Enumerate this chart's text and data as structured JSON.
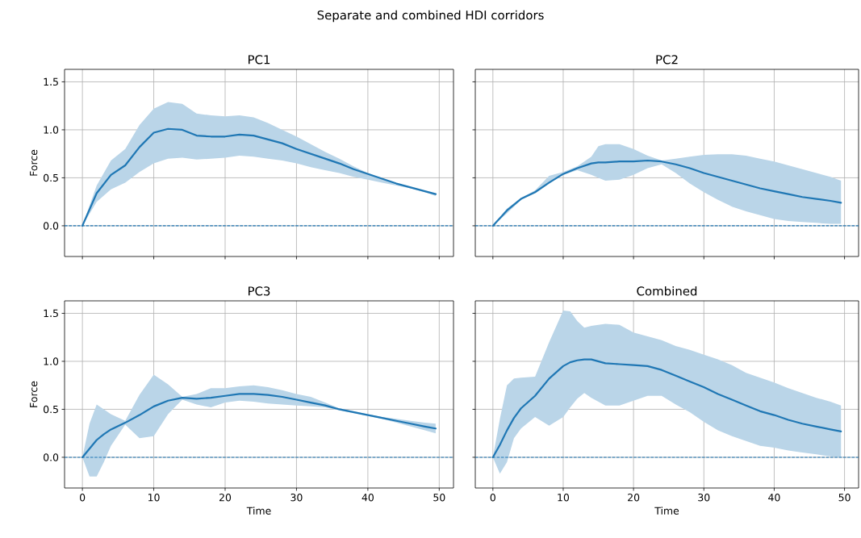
{
  "chart_data": [
    {
      "type": "other",
      "title": "Separate and combined HDI corridors"
    },
    {
      "type": "line",
      "title": "PC1",
      "ylabel": "Force",
      "xlim": [
        -2.5,
        52
      ],
      "ylim": [
        -0.32,
        1.63
      ],
      "xticks": [
        0,
        10,
        20,
        30,
        40,
        50
      ],
      "yticks": [
        {
          "value": 0,
          "label": "0.0"
        },
        {
          "value": 0.5,
          "label": "0.5"
        },
        {
          "value": 1,
          "label": "1.0"
        },
        {
          "value": 1.5,
          "label": "1.5"
        }
      ],
      "tick_labels": "y",
      "grid": true,
      "ref_lines": [
        {
          "axis": "y",
          "value": 0,
          "color": "#1f77b4",
          "line_style": "dashed"
        }
      ],
      "series": [
        {
          "color": "#1f77b4",
          "x": [
            0,
            2,
            4,
            6,
            8,
            10,
            12,
            14,
            16,
            18,
            20,
            22,
            24,
            26,
            28,
            30,
            32,
            34,
            36,
            38,
            40,
            42,
            44,
            46,
            48,
            49.5
          ],
          "values": [
            0,
            0.34,
            0.53,
            0.63,
            0.82,
            0.97,
            1.01,
            1.0,
            0.94,
            0.93,
            0.93,
            0.95,
            0.94,
            0.9,
            0.86,
            0.8,
            0.75,
            0.7,
            0.65,
            0.59,
            0.54,
            0.49,
            0.44,
            0.4,
            0.36,
            0.33
          ],
          "lower": [
            0,
            0.25,
            0.38,
            0.45,
            0.56,
            0.65,
            0.7,
            0.71,
            0.69,
            0.7,
            0.71,
            0.73,
            0.72,
            0.7,
            0.68,
            0.65,
            0.61,
            0.58,
            0.55,
            0.51,
            0.48,
            0.45,
            0.42,
            0.39,
            0.35,
            0.31
          ],
          "upper": [
            0,
            0.42,
            0.68,
            0.8,
            1.05,
            1.22,
            1.29,
            1.27,
            1.17,
            1.15,
            1.14,
            1.15,
            1.13,
            1.07,
            1.0,
            0.93,
            0.85,
            0.77,
            0.7,
            0.62,
            0.55,
            0.49,
            0.44,
            0.4,
            0.36,
            0.33
          ]
        }
      ]
    },
    {
      "type": "line",
      "title": "PC2",
      "xlim": [
        -2.5,
        52
      ],
      "ylim": [
        -0.32,
        1.63
      ],
      "xticks": [
        0,
        10,
        20,
        30,
        40,
        50
      ],
      "yticks": [
        0,
        0.5,
        1,
        1.5
      ],
      "tick_labels": false,
      "grid": true,
      "ref_lines": [
        {
          "axis": "y",
          "value": 0,
          "color": "#1f77b4",
          "line_style": "dashed"
        }
      ],
      "series": [
        {
          "color": "#1f77b4",
          "x": [
            0,
            2,
            4,
            6,
            8,
            10,
            12,
            14,
            15,
            16,
            18,
            20,
            22,
            24,
            26,
            28,
            30,
            32,
            34,
            36,
            38,
            40,
            42,
            44,
            46,
            48,
            49.5
          ],
          "values": [
            0,
            0.16,
            0.28,
            0.35,
            0.45,
            0.54,
            0.6,
            0.65,
            0.66,
            0.66,
            0.67,
            0.67,
            0.68,
            0.67,
            0.64,
            0.6,
            0.55,
            0.51,
            0.47,
            0.43,
            0.39,
            0.36,
            0.33,
            0.3,
            0.28,
            0.26,
            0.24
          ],
          "lower": [
            0,
            0.13,
            0.27,
            0.34,
            0.44,
            0.53,
            0.58,
            0.53,
            0.5,
            0.47,
            0.48,
            0.53,
            0.6,
            0.64,
            0.55,
            0.44,
            0.35,
            0.27,
            0.2,
            0.15,
            0.11,
            0.07,
            0.05,
            0.04,
            0.03,
            0.02,
            0.02
          ],
          "upper": [
            0,
            0.18,
            0.29,
            0.37,
            0.52,
            0.56,
            0.62,
            0.72,
            0.83,
            0.85,
            0.85,
            0.8,
            0.73,
            0.68,
            0.7,
            0.72,
            0.74,
            0.745,
            0.745,
            0.73,
            0.7,
            0.67,
            0.63,
            0.59,
            0.55,
            0.51,
            0.47
          ]
        }
      ]
    },
    {
      "type": "line",
      "title": "PC3",
      "xlabel": "Time",
      "ylabel": "Force",
      "xlim": [
        -2.5,
        52
      ],
      "ylim": [
        -0.32,
        1.63
      ],
      "xticks": [
        0,
        10,
        20,
        30,
        40,
        50
      ],
      "yticks": [
        {
          "value": 0,
          "label": "0.0"
        },
        {
          "value": 0.5,
          "label": "0.5"
        },
        {
          "value": 1,
          "label": "1.0"
        },
        {
          "value": 1.5,
          "label": "1.5"
        }
      ],
      "grid": true,
      "ref_lines": [
        {
          "axis": "y",
          "value": 0,
          "color": "#1f77b4",
          "line_style": "dashed"
        }
      ],
      "series": [
        {
          "color": "#1f77b4",
          "x": [
            0,
            1,
            2,
            3,
            4,
            6,
            8,
            10,
            12,
            14,
            16,
            18,
            20,
            22,
            24,
            26,
            28,
            30,
            32,
            34,
            36,
            38,
            40,
            42,
            44,
            46,
            48,
            49.5
          ],
          "values": [
            0,
            0.09,
            0.18,
            0.24,
            0.29,
            0.36,
            0.44,
            0.53,
            0.59,
            0.62,
            0.61,
            0.62,
            0.64,
            0.66,
            0.66,
            0.65,
            0.63,
            0.6,
            0.57,
            0.54,
            0.5,
            0.47,
            0.44,
            0.41,
            0.38,
            0.35,
            0.32,
            0.3
          ],
          "lower": [
            0,
            -0.2,
            -0.2,
            -0.05,
            0.12,
            0.34,
            0.2,
            0.22,
            0.45,
            0.6,
            0.55,
            0.52,
            0.57,
            0.59,
            0.58,
            0.56,
            0.55,
            0.54,
            0.53,
            0.52,
            0.49,
            0.46,
            0.43,
            0.4,
            0.36,
            0.32,
            0.28,
            0.25
          ],
          "upper": [
            0,
            0.35,
            0.55,
            0.5,
            0.45,
            0.38,
            0.65,
            0.86,
            0.76,
            0.63,
            0.66,
            0.72,
            0.72,
            0.74,
            0.75,
            0.73,
            0.7,
            0.66,
            0.63,
            0.57,
            0.51,
            0.48,
            0.45,
            0.42,
            0.4,
            0.38,
            0.36,
            0.35
          ]
        }
      ]
    },
    {
      "type": "line",
      "title": "Combined",
      "xlabel": "Time",
      "xlim": [
        -2.5,
        52
      ],
      "ylim": [
        -0.32,
        1.63
      ],
      "xticks": [
        0,
        10,
        20,
        30,
        40,
        50
      ],
      "yticks": [
        0,
        0.5,
        1,
        1.5
      ],
      "tick_labels": "x",
      "grid": true,
      "ref_lines": [
        {
          "axis": "y",
          "value": 0,
          "color": "#1f77b4",
          "line_style": "dashed"
        }
      ],
      "series": [
        {
          "color": "#1f77b4",
          "x": [
            0,
            1,
            2,
            3,
            4,
            6,
            8,
            10,
            11,
            12,
            13,
            14,
            16,
            18,
            20,
            22,
            24,
            26,
            28,
            30,
            32,
            34,
            36,
            38,
            40,
            42,
            44,
            46,
            48,
            49.5
          ],
          "values": [
            0,
            0.13,
            0.28,
            0.41,
            0.51,
            0.64,
            0.82,
            0.95,
            0.99,
            1.01,
            1.02,
            1.02,
            0.98,
            0.97,
            0.96,
            0.95,
            0.91,
            0.85,
            0.79,
            0.73,
            0.66,
            0.6,
            0.54,
            0.48,
            0.44,
            0.39,
            0.35,
            0.32,
            0.29,
            0.27
          ],
          "lower": [
            0,
            -0.17,
            -0.05,
            0.2,
            0.3,
            0.42,
            0.33,
            0.42,
            0.52,
            0.61,
            0.67,
            0.62,
            0.54,
            0.54,
            0.59,
            0.64,
            0.64,
            0.55,
            0.47,
            0.37,
            0.28,
            0.22,
            0.17,
            0.12,
            0.1,
            0.07,
            0.05,
            0.03,
            0.01,
            0.0
          ],
          "upper": [
            0,
            0.4,
            0.75,
            0.82,
            0.83,
            0.84,
            1.2,
            1.53,
            1.52,
            1.42,
            1.35,
            1.37,
            1.39,
            1.38,
            1.3,
            1.26,
            1.22,
            1.16,
            1.12,
            1.07,
            1.02,
            0.96,
            0.88,
            0.83,
            0.78,
            0.72,
            0.67,
            0.62,
            0.58,
            0.54
          ]
        }
      ]
    }
  ]
}
